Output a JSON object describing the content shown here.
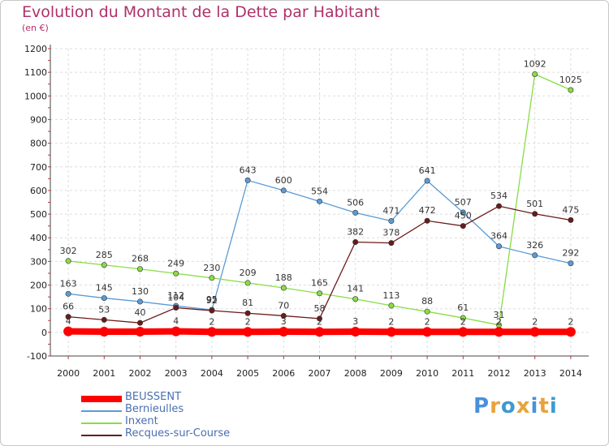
{
  "chart_data": {
    "type": "line",
    "title": "Evolution du Montant de la Dette par Habitant",
    "subtitle": "(en €)",
    "x": [
      "2000",
      "2001",
      "2002",
      "2003",
      "2004",
      "2005",
      "2006",
      "2007",
      "2008",
      "2009",
      "2010",
      "2011",
      "2012",
      "2013",
      "2014"
    ],
    "ylim": [
      -100,
      1200
    ],
    "yticks": [
      "-100",
      "0",
      "100",
      "200",
      "300",
      "400",
      "500",
      "600",
      "700",
      "800",
      "900",
      "1000",
      "1100",
      "1200"
    ],
    "grid": true,
    "legend_position": "bottom-left",
    "series": [
      {
        "name": "BEUSSENT",
        "color": "#ff0000",
        "values": [
          4,
          3,
          3,
          4,
          2,
          2,
          3,
          2,
          3,
          2,
          2,
          2,
          2,
          2,
          2
        ],
        "labels": [
          "4",
          "",
          "",
          "4",
          "2",
          "2",
          "3",
          "2",
          "3",
          "2",
          "2",
          "2",
          "2",
          "2",
          "2"
        ]
      },
      {
        "name": "Bernieulles",
        "color": "#5b9bd5",
        "values": [
          163,
          145,
          130,
          112,
          95,
          643,
          600,
          554,
          506,
          471,
          641,
          507,
          364,
          326,
          292
        ],
        "labels": [
          "163",
          "145",
          "130",
          "112",
          "95",
          "643",
          "600",
          "554",
          "506",
          "471",
          "641",
          "507",
          "364",
          "326",
          "292"
        ]
      },
      {
        "name": "Inxent",
        "color": "#88dd44",
        "values": [
          302,
          285,
          268,
          249,
          230,
          209,
          188,
          165,
          141,
          113,
          88,
          61,
          31,
          1092,
          1025
        ],
        "labels": [
          "302",
          "285",
          "268",
          "249",
          "230",
          "209",
          "188",
          "165",
          "141",
          "113",
          "88",
          "61",
          "31",
          "1092",
          "1025"
        ]
      },
      {
        "name": "Recques-sur-Course",
        "color": "#6b1a1a",
        "values": [
          66,
          53,
          40,
          104,
          92,
          81,
          70,
          58,
          382,
          378,
          472,
          450,
          534,
          501,
          475
        ],
        "labels": [
          "66",
          "53",
          "40",
          "104",
          "92",
          "81",
          "70",
          "58",
          "382",
          "378",
          "472",
          "450",
          "534",
          "501",
          "475"
        ]
      }
    ]
  },
  "branding": {
    "letters": [
      "P",
      "r",
      "o",
      "x",
      "i",
      "t",
      "i"
    ],
    "colors": [
      "#4a90d9",
      "#e8a33c",
      "#3c9ad0",
      "#e8a33c",
      "#4a90d9",
      "#e8a33c",
      "#3c9ad0"
    ]
  }
}
